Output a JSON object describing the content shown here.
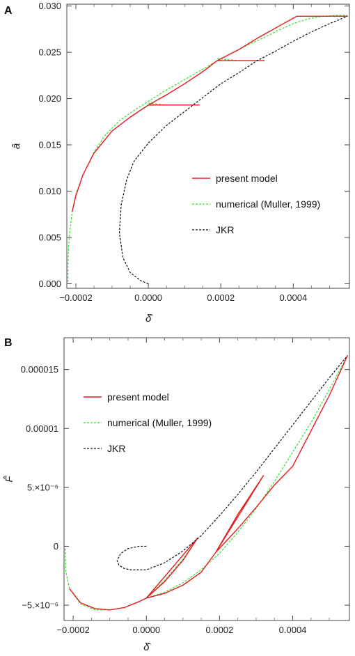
{
  "chart_data": [
    {
      "panel": "A",
      "type": "line",
      "xlabel": "δ̂",
      "ylabel": "â",
      "xlim": [
        -0.000225,
        0.000555
      ],
      "ylim": [
        -0.0005,
        0.0302
      ],
      "x_ticks": [
        {
          "value": -0.0002,
          "label": "−0.0002"
        },
        {
          "value": 0.0,
          "label": "0.0000"
        },
        {
          "value": 0.0002,
          "label": "0.0002"
        },
        {
          "value": 0.0004,
          "label": "0.0004"
        }
      ],
      "y_ticks": [
        {
          "value": 0.0,
          "label": "0.000"
        },
        {
          "value": 0.005,
          "label": "0.005"
        },
        {
          "value": 0.01,
          "label": "0.010"
        },
        {
          "value": 0.015,
          "label": "0.015"
        },
        {
          "value": 0.02,
          "label": "0.020"
        },
        {
          "value": 0.025,
          "label": "0.025"
        },
        {
          "value": 0.03,
          "label": "0.030"
        }
      ],
      "legend_position": "center-right",
      "series": [
        {
          "name": "present model",
          "color": "#e8191f",
          "style": "solid",
          "x": [
            -0.00021,
            -0.0002,
            -0.00018,
            -0.00015,
            -0.0001,
            -5e-05,
            0.0,
            0.0,
            0.00014,
            0.0,
            5e-05,
            0.0001,
            0.00015,
            0.00019,
            0.00019,
            0.00032,
            0.00019,
            0.00025,
            0.0003,
            0.00035,
            0.00041,
            0.00041,
            0.00055
          ],
          "y": [
            0.0078,
            0.0095,
            0.0118,
            0.0141,
            0.0165,
            0.018,
            0.0193,
            0.0193,
            0.0193,
            0.0193,
            0.0204,
            0.0216,
            0.0229,
            0.0241,
            0.0241,
            0.0241,
            0.0241,
            0.0253,
            0.0265,
            0.0276,
            0.0289,
            0.0289,
            0.0289
          ]
        },
        {
          "name": "numerical (Muller, 1999)",
          "color": "#2fe02a",
          "style": "dashed",
          "x": [
            -0.000222,
            -0.000222,
            -0.00022,
            -0.000215,
            -0.00021,
            -0.0002,
            -0.00018,
            -0.00015,
            -0.00012,
            -8e-05,
            -4e-05,
            0.0,
            4e-05,
            8e-05,
            0.00012,
            0.00016,
            0.0002,
            0.00024,
            0.00028,
            0.00032,
            0.00036,
            0.0004,
            0.00044,
            0.00048,
            0.00052,
            0.00055
          ],
          "y": [
            0.0002,
            0.002,
            0.0042,
            0.0062,
            0.0078,
            0.0097,
            0.0118,
            0.0142,
            0.016,
            0.0176,
            0.0187,
            0.0197,
            0.0207,
            0.0216,
            0.0225,
            0.0234,
            0.0243,
            0.0251,
            0.0259,
            0.0266,
            0.0274,
            0.0281,
            0.0286,
            0.0289,
            0.029,
            0.029
          ]
        },
        {
          "name": "JKR",
          "color": "#111111",
          "style": "dashed",
          "x": [
            0.0,
            -2e-05,
            -5e-05,
            -7e-05,
            -8e-05,
            -7.5e-05,
            -6e-05,
            -4e-05,
            0.0,
            5e-05,
            0.0001,
            0.00015,
            0.0002,
            0.00025,
            0.0003,
            0.00035,
            0.0004,
            0.00045,
            0.0005,
            0.00055
          ],
          "y": [
            0.0,
            0.0003,
            0.0012,
            0.0028,
            0.0055,
            0.0085,
            0.0112,
            0.0132,
            0.0152,
            0.0171,
            0.0186,
            0.0201,
            0.0216,
            0.0228,
            0.0241,
            0.0251,
            0.0262,
            0.0272,
            0.0281,
            0.0289
          ]
        },
        {
          "name": "",
          "color": "#2fe02a",
          "style": "dashed",
          "x": [
            0.0,
            5e-05,
            0.0001,
            0.00014
          ],
          "y": [
            0.0195,
            0.0193,
            0.0193,
            0.0193
          ]
        },
        {
          "name": "",
          "color": "#2fe02a",
          "style": "dashed",
          "x": [
            0.00019,
            0.00025,
            0.00032
          ],
          "y": [
            0.0243,
            0.0241,
            0.0241
          ]
        }
      ]
    },
    {
      "panel": "B",
      "type": "line",
      "xlabel": "δ̂",
      "ylabel": "F̂",
      "xlim": [
        -0.000225,
        0.000555
      ],
      "ylim": [
        -6.3e-06,
        1.77e-05
      ],
      "x_ticks": [
        {
          "value": -0.0002,
          "label": "−0.0002"
        },
        {
          "value": 0.0,
          "label": "0.0000"
        },
        {
          "value": 0.0002,
          "label": "0.0002"
        },
        {
          "value": 0.0004,
          "label": "0.0004"
        }
      ],
      "y_ticks": [
        {
          "value": -5e-06,
          "label": "−5.×10⁻⁶"
        },
        {
          "value": 0.0,
          "label": "0"
        },
        {
          "value": 5e-06,
          "label": "5.×10⁻⁶"
        },
        {
          "value": 1e-05,
          "label": "0.00001"
        },
        {
          "value": 1.5e-05,
          "label": "0.000015"
        }
      ],
      "legend_position": "top-left",
      "series": [
        {
          "name": "present model",
          "color": "#e8191f",
          "style": "solid",
          "x": [
            -0.00021,
            -0.00018,
            -0.00014,
            -0.0001,
            -6e-05,
            -2e-05,
            0.0,
            0.0,
            5e-05,
            0.0001,
            0.00014,
            0.0,
            5e-05,
            0.0001,
            0.00015,
            0.00019,
            0.00019,
            0.00025,
            0.00032,
            0.00019,
            0.00025,
            0.0003,
            0.00035,
            0.0004,
            0.00041,
            0.00041,
            0.00045,
            0.0005,
            0.00055
          ],
          "y": [
            -3.6e-06,
            -4.8e-06,
            -5.3e-06,
            -5.4e-06,
            -5.2e-06,
            -4.7e-06,
            -4.4e-06,
            -4.4e-06,
            -3e-06,
            -1.2e-06,
            7e-07,
            -4.4e-06,
            -4e-06,
            -3.3e-06,
            -2.2e-06,
            -5e-07,
            -5e-07,
            2.7e-06,
            6e-06,
            -5e-07,
            1.5e-06,
            3.3e-06,
            5.2e-06,
            6.8e-06,
            7.4e-06,
            7.4e-06,
            9.8e-06,
            1.28e-05,
            1.62e-05
          ]
        },
        {
          "name": "numerical (Muller, 1999)",
          "color": "#2fe02a",
          "style": "dashed",
          "x": [
            -0.000222,
            -0.00022,
            -0.00021,
            -0.00018,
            -0.00014,
            -0.0001,
            -6e-05,
            -2e-05,
            0.0,
            5e-05,
            0.0001,
            0.00015,
            0.0002,
            0.00025,
            0.0003,
            0.00035,
            0.0004,
            0.00045,
            0.0005,
            0.00055
          ],
          "y": [
            -2e-07,
            -2.2e-06,
            -3.6e-06,
            -4.9e-06,
            -5.4e-06,
            -5.4e-06,
            -5.2e-06,
            -4.7e-06,
            -4.4e-06,
            -3.9e-06,
            -3.1e-06,
            -2e-06,
            -6e-07,
            1.2e-06,
            3.2e-06,
            5.5e-06,
            8e-06,
            1.05e-05,
            1.33e-05,
            1.62e-05
          ]
        },
        {
          "name": "JKR",
          "color": "#111111",
          "style": "dashed",
          "x": [
            0.0,
            -2e-05,
            -5e-05,
            -7e-05,
            -8e-05,
            -7.5e-05,
            -6e-05,
            -4e-05,
            0.0,
            5e-05,
            0.0001,
            0.00015,
            0.0002,
            0.00025,
            0.0003,
            0.00035,
            0.0004,
            0.00045,
            0.0005,
            0.00055
          ],
          "y": [
            0.0,
            0.0,
            -2e-07,
            -6e-07,
            -1.2e-06,
            -1.6e-06,
            -1.9e-06,
            -2e-06,
            -2e-06,
            -1.4e-06,
            -4e-07,
            9e-07,
            2.6e-06,
            4.4e-06,
            6.3e-06,
            8.3e-06,
            1.03e-05,
            1.23e-05,
            1.43e-05,
            1.62e-05
          ]
        },
        {
          "name": "",
          "color": "#2fe02a",
          "style": "dashed",
          "x": [
            0.0,
            5e-05,
            0.0001,
            0.00014
          ],
          "y": [
            -4.4e-06,
            -2.9e-06,
            -1.1e-06,
            7e-07
          ]
        },
        {
          "name": "",
          "color": "#2fe02a",
          "style": "dashed",
          "x": [
            0.00019,
            0.00025,
            0.00032
          ],
          "y": [
            -5e-07,
            2.7e-06,
            6e-06
          ]
        }
      ]
    }
  ]
}
